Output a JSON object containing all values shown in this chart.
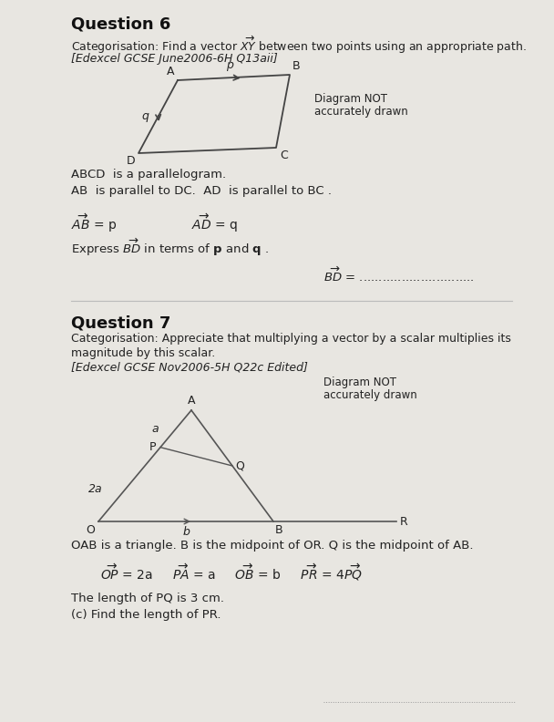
{
  "bg_color": "#e8e6e1",
  "q6_title": "Question 6",
  "q6_cat": "Categorisation: Find a vector $\\overrightarrow{XY}$ between two points using an appropriate path.",
  "q6_ref": "[Edexcel GCSE June2006-6H Q13aii]",
  "q6_diagram_note_1": "Diagram NOT",
  "q6_diagram_note_2": "accurately drawn",
  "q6_para1": "ABCD  is a parallelogram.",
  "q6_para2": "AB  is parallel to DC.  AD  is parallel to BC .",
  "q6_answer_label": "$\\overrightarrow{BD}$ = ..............................",
  "q7_title": "Question 7",
  "q7_cat1": "Categorisation: Appreciate that multiplying a vector by a scalar multiplies its",
  "q7_cat2": "magnitude by this scalar.",
  "q7_ref": "[Edexcel GCSE Nov2006-5H Q22c Edited]",
  "q7_diagram_note_1": "Diagram NOT",
  "q7_diagram_note_2": "accurately drawn",
  "q7_para1": "OAB is a triangle. B is the midpoint of OR. Q is the midpoint of AB.",
  "q7_length": "The length of PQ is 3 cm.",
  "q7_find": "(c) Find the length of PR.",
  "line_color": "#888888",
  "text_color": "#222222",
  "title_color": "#111111"
}
